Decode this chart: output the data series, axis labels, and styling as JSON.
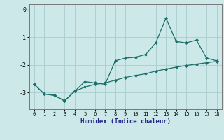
{
  "xlabel": "Humidex (Indice chaleur)",
  "bg_color": "#cce8e8",
  "grid_color": "#aacccc",
  "line_color": "#1a6e6a",
  "x_data": [
    0,
    1,
    2,
    3,
    4,
    5,
    6,
    7,
    8,
    9,
    10,
    11,
    12,
    13,
    14,
    15,
    16,
    17,
    18
  ],
  "y1_data": [
    -2.7,
    -3.05,
    -3.1,
    -3.3,
    -2.95,
    -2.6,
    -2.65,
    -2.7,
    -1.85,
    -1.75,
    -1.72,
    -1.62,
    -1.2,
    -0.3,
    -1.15,
    -1.2,
    -1.1,
    -1.75,
    -1.85
  ],
  "y2_data": [
    -2.7,
    -3.05,
    -3.1,
    -3.3,
    -2.95,
    -2.8,
    -2.7,
    -2.65,
    -2.55,
    -2.45,
    -2.38,
    -2.32,
    -2.22,
    -2.15,
    -2.08,
    -2.02,
    -1.97,
    -1.92,
    -1.87
  ],
  "ylim": [
    -3.6,
    0.2
  ],
  "xlim": [
    -0.5,
    18.5
  ],
  "yticks": [
    0,
    -1,
    -2,
    -3
  ],
  "xticks": [
    0,
    1,
    2,
    3,
    4,
    5,
    6,
    7,
    8,
    9,
    10,
    11,
    12,
    13,
    14,
    15,
    16,
    17,
    18
  ]
}
